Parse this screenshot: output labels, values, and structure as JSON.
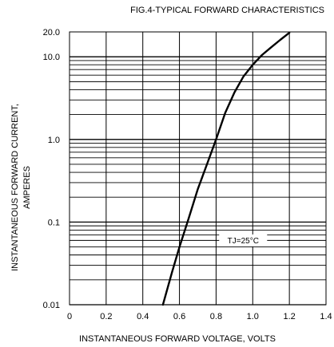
{
  "chart_data": {
    "type": "line",
    "title": "FIG.4-TYPICAL FORWARD CHARACTERISTICS",
    "xlabel": "INSTANTANEOUS FORWARD VOLTAGE, VOLTS",
    "ylabel_line1": "INSTANTANEOUS FORWARD CURRENT,",
    "ylabel_line2": "AMPERES",
    "x_scale": "linear",
    "y_scale": "log",
    "xlim": [
      0,
      1.4
    ],
    "ylim": [
      0.01,
      20
    ],
    "x_ticks": [
      0,
      0.2,
      0.4,
      0.6,
      0.8,
      1.0,
      1.2,
      1.4
    ],
    "x_tick_labels": [
      "0",
      "0.2",
      "0.4",
      "0.6",
      "0.8",
      "1.0",
      "1.2",
      "1.4"
    ],
    "y_ticks": [
      0.01,
      0.1,
      1,
      10,
      20
    ],
    "y_tick_labels": [
      "0.01",
      "0.1",
      "1.0",
      "10.0",
      "20.0"
    ],
    "grid": true,
    "annotation": "TJ=25°C",
    "series": [
      {
        "x": [
          0.51,
          0.56,
          0.6,
          0.65,
          0.7,
          0.75,
          0.8,
          0.85,
          0.9,
          0.95,
          1.0,
          1.05,
          1.1,
          1.15,
          1.2
        ],
        "y": [
          0.01,
          0.025,
          0.05,
          0.11,
          0.25,
          0.5,
          1.0,
          2.1,
          3.7,
          5.8,
          8.0,
          10.5,
          13.0,
          16.0,
          19.5
        ]
      }
    ]
  }
}
